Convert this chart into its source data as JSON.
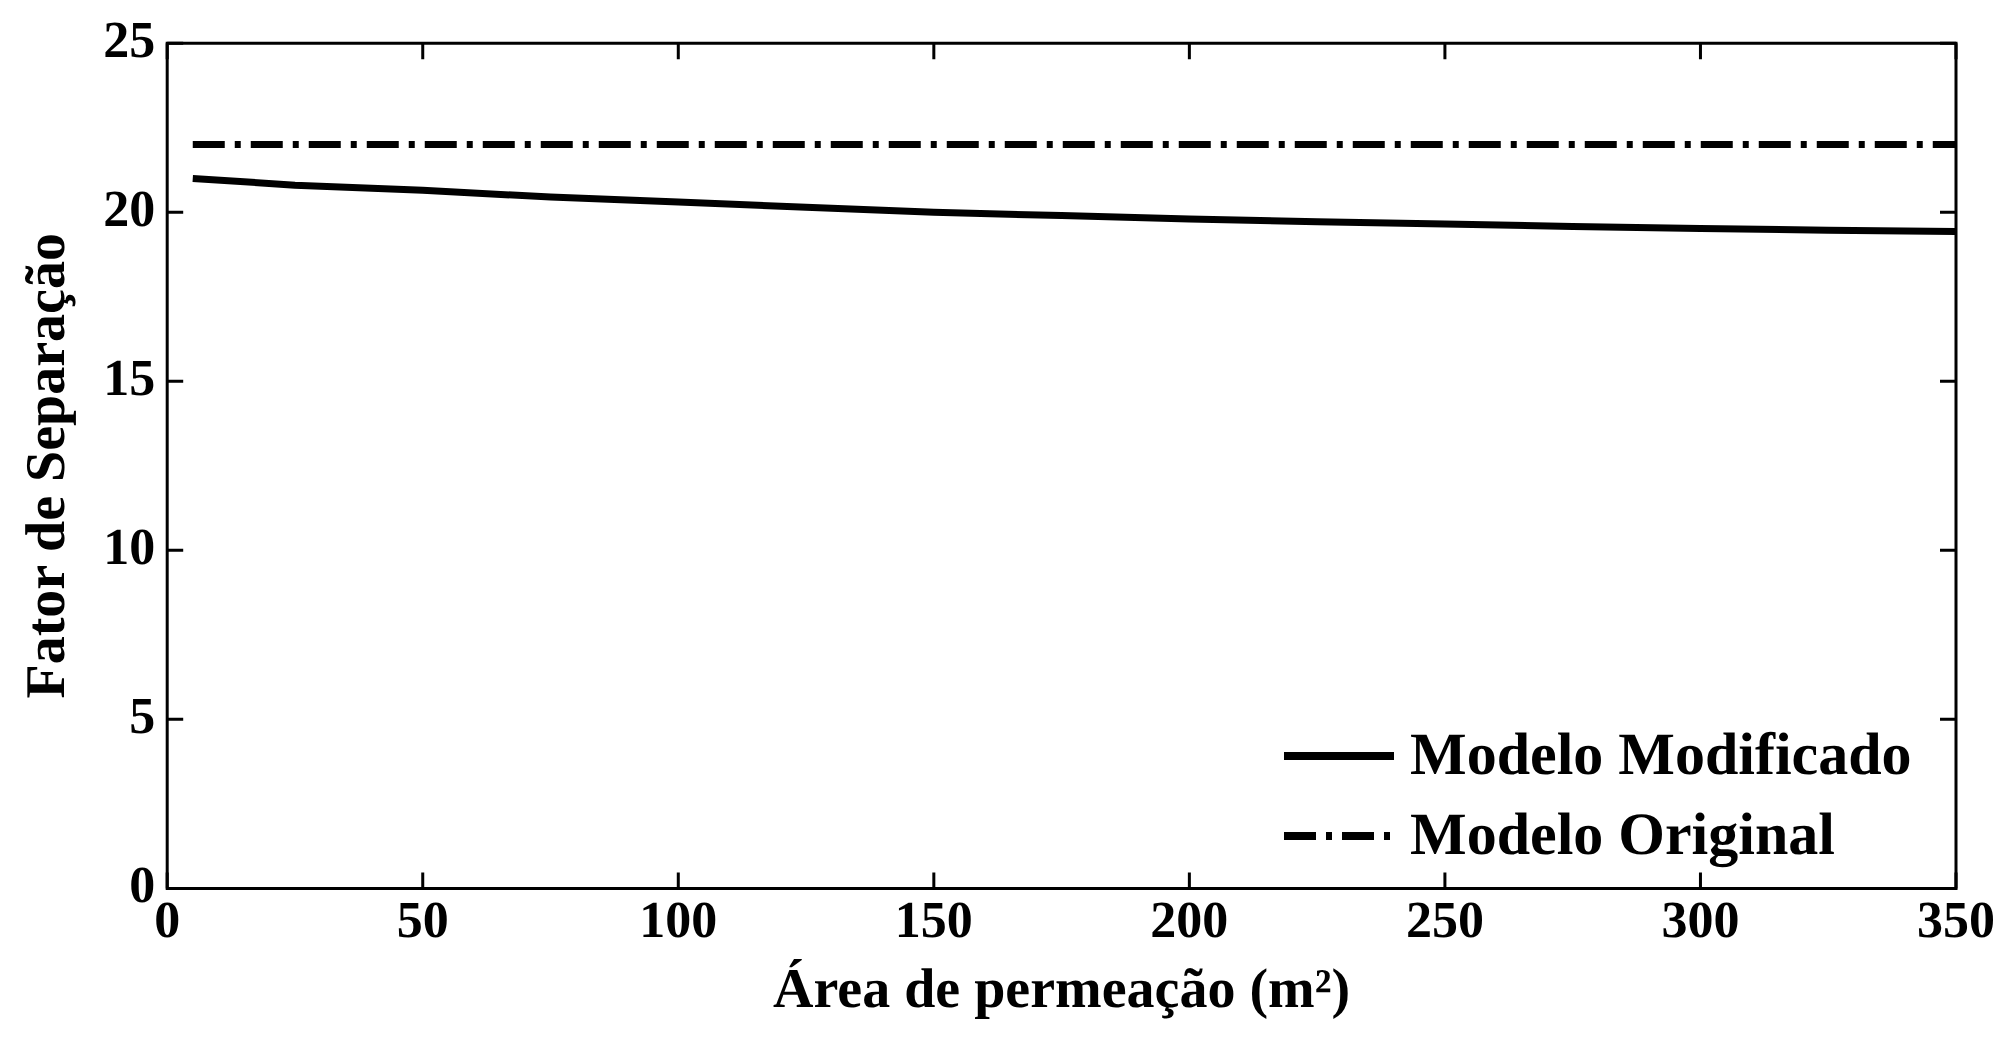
{
  "chart_data": {
    "type": "line",
    "xlabel": "Área de permeação (m²)",
    "ylabel": "Fator de Separação",
    "xlim": [
      0,
      350
    ],
    "xticks": [
      0,
      50,
      100,
      150,
      200,
      250,
      300,
      350
    ],
    "ylim": [
      0,
      25
    ],
    "yticks": [
      0,
      5,
      10,
      15,
      20,
      25
    ],
    "grid": false,
    "legend": "bottom right",
    "marker": "none",
    "series": [
      {
        "name": "Modelo Modificado",
        "color": "#000000",
        "line_style": "solid",
        "x": [
          5,
          25,
          50,
          75,
          100,
          125,
          150,
          175,
          200,
          225,
          250,
          275,
          300,
          325,
          350
        ],
        "values": [
          21.0,
          20.8,
          20.65,
          20.45,
          20.3,
          20.15,
          20.0,
          19.9,
          19.8,
          19.72,
          19.65,
          19.58,
          19.52,
          19.47,
          19.43
        ]
      },
      {
        "name": "Modelo Original",
        "color": "#000000",
        "line_style": "dashed",
        "x": [
          5,
          350
        ],
        "values": [
          22.0,
          22.0
        ]
      }
    ]
  }
}
